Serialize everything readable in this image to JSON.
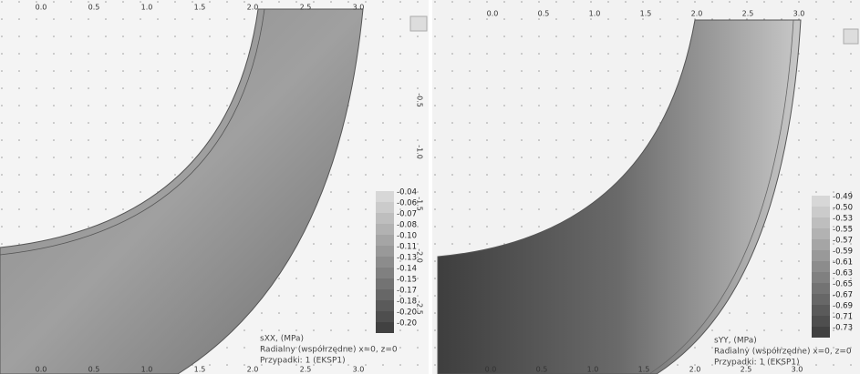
{
  "panels": [
    {
      "top_ticks": [
        "0.0",
        "0.5",
        "1.0",
        "1.5",
        "2.0",
        "2.5",
        "3.0"
      ],
      "side_ticks": [
        "-0.5",
        "-1.0",
        "-1.5",
        "-2.0",
        "-2.5"
      ],
      "bottom_ticks": [
        "0.0",
        "0.5",
        "1.0",
        "1.5",
        "2.0",
        "2.5",
        "3.0"
      ],
      "legend": [
        "-0.04",
        "-0.06",
        "-0.07",
        "-0.08",
        "-0.10",
        "-0.11",
        "-0.13",
        "-0.14",
        "-0.15",
        "-0.17",
        "-0.18",
        "-0.20",
        "-0.20"
      ],
      "caption": [
        "sXX, (MPa)",
        "Radialny (współrzędne) x=0, z=0",
        "Przypadki: 1 (EKSP1)"
      ]
    },
    {
      "top_ticks": [
        "0.0",
        "0.5",
        "1.0",
        "1.5",
        "2.0",
        "2.5",
        "3.0"
      ],
      "side_ticks": [],
      "bottom_ticks": [
        "0.0",
        "0.5",
        "1.0",
        "1.5",
        "2.0",
        "2.5",
        "3.0"
      ],
      "legend": [
        "-0.49",
        "-0.50",
        "-0.53",
        "-0.55",
        "-0.57",
        "-0.59",
        "-0.61",
        "-0.63",
        "-0.65",
        "-0.67",
        "-0.69",
        "-0.71",
        "-0.73"
      ],
      "caption": [
        "sYY, (MPa)",
        "Radialny (współrzędne) x=0, z=0",
        "Przypadki: 1 (EKSP1)"
      ]
    }
  ]
}
